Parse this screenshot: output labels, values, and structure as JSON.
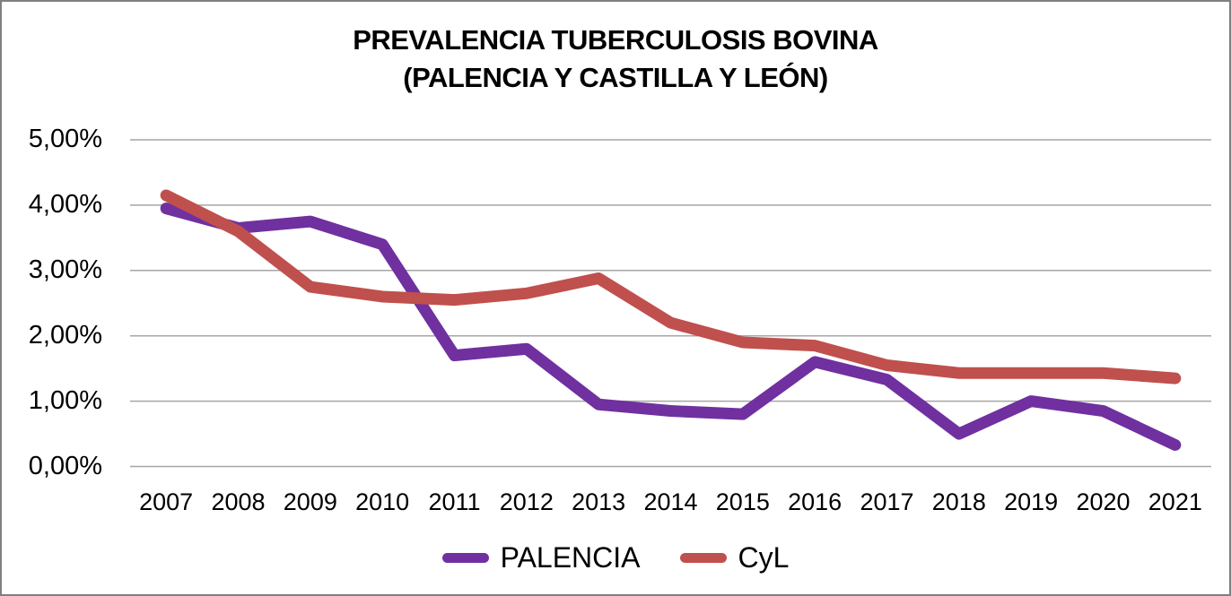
{
  "title": {
    "line1": "PREVALENCIA TUBERCULOSIS BOVINA",
    "line2": "(PALENCIA Y CASTILLA Y LEÓN)"
  },
  "chart_data": {
    "type": "line",
    "title": "PREVALENCIA TUBERCULOSIS BOVINA (PALENCIA Y CASTILLA Y LEÓN)",
    "categories": [
      "2007",
      "2008",
      "2009",
      "2010",
      "2011",
      "2012",
      "2013",
      "2014",
      "2015",
      "2016",
      "2017",
      "2018",
      "2019",
      "2020",
      "2021"
    ],
    "series": [
      {
        "name": "PALENCIA",
        "color": "#7030A0",
        "values": [
          3.95,
          3.65,
          3.75,
          3.4,
          1.7,
          1.8,
          0.95,
          0.85,
          0.8,
          1.6,
          1.33,
          0.5,
          1.0,
          0.85,
          0.33
        ]
      },
      {
        "name": "CyL",
        "color": "#C0504D",
        "values": [
          4.15,
          3.6,
          2.75,
          2.6,
          2.55,
          2.65,
          2.88,
          2.2,
          1.9,
          1.85,
          1.55,
          1.43,
          1.43,
          1.43,
          1.35
        ]
      }
    ],
    "yticks": [
      "0,00%",
      "1,00%",
      "2,00%",
      "3,00%",
      "4,00%",
      "5,00%"
    ],
    "ylim": [
      0,
      5
    ],
    "xlabel": "",
    "ylabel": "",
    "grid": true,
    "legend_position": "bottom"
  },
  "colors": {
    "gridline": "#A6A6A6",
    "frame_border": "#808080",
    "background": "#FFFFFF",
    "text": "#000000"
  }
}
